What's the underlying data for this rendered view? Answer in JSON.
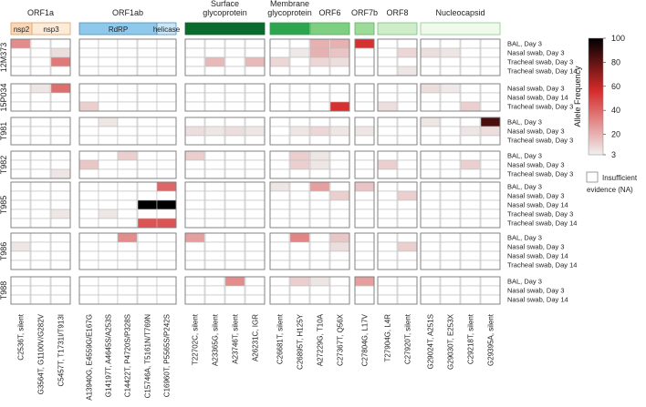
{
  "chart_data": {
    "type": "heatmap",
    "colorbar": {
      "title": "Allele Frequency",
      "ticks": [
        3,
        20,
        40,
        60,
        80,
        100
      ],
      "vmin": 3,
      "vmax": 100,
      "low_color": "#f0f0f0",
      "mid_color": "#d52b2b",
      "high_color": "#000000"
    },
    "na_legend": {
      "line1": "Insufficient",
      "line2": "evidence (NA)"
    },
    "mutations": [
      "C2536T, silent",
      "G3564T, G1100V/G282V",
      "C5457T, T1731I/T913I",
      "A13940G, E4559G/E167G",
      "G14197T, A4645S/A253S",
      "C14422T, P4720S/P328S",
      "C15746A, T5161N/T769N",
      "C16960T, P5565S/P242S",
      "T22702C, silent",
      "A23365G, silent",
      "A23746T, silent",
      "A26231C, IGR",
      "C26681T, silent",
      "C26895T, H125Y",
      "A27229G, T10A",
      "C27367T, Q56X",
      "C27804G, L17V",
      "T27904G, L4R",
      "C27920T, silent",
      "G29024T, A251S",
      "G29030T, E253X",
      "C29218T, silent",
      "G29395A, silent"
    ],
    "genes": [
      {
        "label": "ORF1a",
        "color": "#ffffff",
        "border": "#ffffff"
      },
      {
        "label": "ORF1ab",
        "color": "#ffffff",
        "border": "#ffffff"
      },
      {
        "label": "Surface glycoprotein",
        "line1": "Surface",
        "line2": "glycoprotein",
        "color": "#0b6b2f",
        "border": "#0b6b2f"
      },
      {
        "label": "Membrane glycoprotein",
        "line1": "Membrane",
        "line2": "glycoprotein",
        "color": "#2ea44f",
        "border": "#2ea44f"
      },
      {
        "label": "ORF6",
        "color": "#7fcf80",
        "border": "#4fa85a"
      },
      {
        "label": "ORF7b",
        "color": "#9ddc98",
        "border": "#5fae63"
      },
      {
        "label": "ORF8",
        "color": "#cdeec8",
        "border": "#7cbf7d"
      },
      {
        "label": "Nucleocapsid",
        "color": "#eefaea",
        "border": "#8cc98c"
      }
    ],
    "subgenes": [
      {
        "label": "nsp2",
        "color": "#f9d6b5",
        "border": "#e0a060"
      },
      {
        "label": "nsp3",
        "color": "#fcebd9",
        "border": "#e0a060"
      },
      {
        "label": "RdRP",
        "color": "#8ec8ea",
        "border": "#4a90c0"
      },
      {
        "label": "helicase",
        "color": "#c9e5f6",
        "border": "#4a90c0"
      }
    ],
    "patients": [
      {
        "id": "12M373",
        "samples": [
          "BAL, Day 3",
          "Nasal swab, Day 3",
          "Tracheal swab, Day 3",
          "Tracheal swab, Day 14"
        ]
      },
      {
        "id": "15P034",
        "samples": [
          "Nasal swab, Day 3",
          "Nasal swab, Day 14",
          "Tracheal swab, Day 3"
        ]
      },
      {
        "id": "T981",
        "samples": [
          "BAL, Day 3",
          "Nasal swab, Day 3",
          "Tracheal swab, Day 3"
        ]
      },
      {
        "id": "T982",
        "samples": [
          "BAL, Day 3",
          "Nasal swab, Day 3",
          "Tracheal swab, Day 3"
        ]
      },
      {
        "id": "T985",
        "samples": [
          "BAL, Day 3",
          "Nasal swab, Day 3",
          "Nasal swab, Day 14",
          "Tracheal swab, Day 3",
          "Tracheal swab, Day 14"
        ]
      },
      {
        "id": "T986",
        "samples": [
          "BAL, Day 3",
          "Nasal swab, Day 3",
          "Nasal swab, Day 14",
          "Tracheal swab, Day 14"
        ]
      },
      {
        "id": "T988",
        "samples": [
          "BAL, Day 3",
          "Nasal swab, Day 3",
          "Nasal swab, Day 14"
        ]
      }
    ],
    "values": [
      [
        [
          30,
          0,
          0,
          0,
          0,
          0,
          0,
          0,
          0,
          0,
          0,
          0,
          0,
          0,
          20,
          20,
          55,
          0,
          0,
          0,
          0,
          0,
          0
        ],
        [
          0,
          0,
          8,
          0,
          0,
          0,
          0,
          0,
          0,
          0,
          0,
          0,
          0,
          5,
          20,
          15,
          0,
          0,
          10,
          8,
          6,
          0,
          0
        ],
        [
          0,
          0,
          35,
          0,
          0,
          0,
          0,
          0,
          0,
          18,
          0,
          18,
          10,
          0,
          10,
          8,
          0,
          0,
          0,
          0,
          0,
          0,
          0
        ],
        [
          0,
          0,
          0,
          0,
          0,
          0,
          0,
          0,
          0,
          0,
          0,
          0,
          0,
          0,
          0,
          0,
          0,
          0,
          6,
          0,
          0,
          0,
          0
        ]
      ],
      [
        [
          0,
          6,
          38,
          0,
          0,
          0,
          0,
          0,
          0,
          0,
          0,
          0,
          0,
          0,
          0,
          0,
          0,
          0,
          0,
          8,
          5,
          0,
          0
        ],
        [
          0,
          0,
          0,
          0,
          0,
          0,
          0,
          0,
          0,
          0,
          0,
          0,
          0,
          0,
          0,
          0,
          0,
          0,
          0,
          0,
          0,
          0,
          0
        ],
        [
          0,
          0,
          0,
          12,
          0,
          0,
          0,
          0,
          0,
          0,
          0,
          0,
          0,
          0,
          0,
          55,
          0,
          8,
          0,
          0,
          0,
          12,
          0
        ]
      ],
      [
        [
          0,
          0,
          0,
          0,
          6,
          0,
          0,
          0,
          0,
          0,
          0,
          0,
          0,
          0,
          0,
          0,
          0,
          0,
          0,
          6,
          0,
          0,
          85
        ],
        [
          0,
          0,
          0,
          0,
          0,
          0,
          0,
          0,
          8,
          6,
          8,
          6,
          0,
          6,
          10,
          6,
          6,
          0,
          0,
          0,
          0,
          6,
          8
        ],
        [
          0,
          0,
          0,
          0,
          0,
          0,
          0,
          0,
          0,
          0,
          0,
          0,
          0,
          0,
          0,
          0,
          0,
          0,
          0,
          0,
          0,
          0,
          0
        ]
      ],
      [
        [
          0,
          0,
          0,
          0,
          0,
          12,
          0,
          0,
          12,
          0,
          0,
          0,
          0,
          12,
          6,
          0,
          0,
          0,
          0,
          0,
          0,
          0,
          0
        ],
        [
          0,
          0,
          0,
          14,
          0,
          0,
          0,
          0,
          0,
          0,
          0,
          0,
          0,
          12,
          6,
          0,
          0,
          12,
          0,
          0,
          0,
          12,
          0
        ],
        [
          0,
          0,
          6,
          0,
          0,
          0,
          0,
          0,
          0,
          0,
          0,
          0,
          0,
          0,
          0,
          0,
          0,
          0,
          0,
          0,
          0,
          0,
          0
        ]
      ],
      [
        [
          0,
          0,
          0,
          0,
          0,
          0,
          0,
          40,
          0,
          0,
          0,
          0,
          6,
          0,
          25,
          0,
          15,
          0,
          0,
          0,
          0,
          0,
          0
        ],
        [
          0,
          0,
          0,
          0,
          0,
          0,
          0,
          0,
          0,
          0,
          0,
          0,
          0,
          0,
          0,
          12,
          0,
          0,
          12,
          0,
          0,
          0,
          0
        ],
        [
          0,
          0,
          0,
          0,
          0,
          0,
          100,
          100,
          0,
          0,
          0,
          0,
          0,
          0,
          0,
          0,
          0,
          0,
          0,
          0,
          0,
          0,
          0
        ],
        [
          0,
          0,
          6,
          0,
          6,
          0,
          0,
          0,
          0,
          0,
          0,
          0,
          0,
          0,
          0,
          0,
          0,
          0,
          0,
          0,
          0,
          0,
          0
        ],
        [
          0,
          0,
          0,
          0,
          0,
          0,
          45,
          45,
          0,
          0,
          0,
          0,
          0,
          0,
          0,
          0,
          0,
          0,
          0,
          0,
          0,
          0,
          0
        ]
      ],
      [
        [
          0,
          0,
          0,
          0,
          0,
          30,
          0,
          0,
          25,
          0,
          0,
          0,
          0,
          32,
          0,
          14,
          0,
          0,
          0,
          0,
          0,
          0,
          0
        ],
        [
          6,
          0,
          0,
          0,
          0,
          0,
          0,
          0,
          0,
          0,
          0,
          0,
          0,
          0,
          0,
          8,
          0,
          0,
          12,
          0,
          0,
          0,
          0
        ],
        [
          0,
          0,
          0,
          0,
          0,
          0,
          0,
          0,
          0,
          0,
          0,
          0,
          0,
          0,
          0,
          0,
          0,
          0,
          0,
          0,
          0,
          0,
          0
        ],
        [
          0,
          0,
          0,
          0,
          0,
          0,
          0,
          0,
          0,
          0,
          0,
          0,
          0,
          0,
          0,
          0,
          0,
          0,
          0,
          0,
          0,
          0,
          0
        ]
      ],
      [
        [
          0,
          0,
          0,
          0,
          0,
          0,
          0,
          0,
          0,
          0,
          30,
          0,
          0,
          12,
          6,
          0,
          25,
          0,
          0,
          0,
          0,
          0,
          0
        ],
        [
          0,
          0,
          0,
          0,
          0,
          0,
          0,
          0,
          0,
          0,
          0,
          0,
          0,
          0,
          0,
          0,
          0,
          0,
          0,
          0,
          0,
          0,
          0
        ],
        [
          0,
          0,
          0,
          0,
          0,
          0,
          0,
          0,
          0,
          0,
          0,
          0,
          0,
          0,
          0,
          0,
          0,
          0,
          0,
          0,
          0,
          0,
          0
        ]
      ]
    ]
  }
}
